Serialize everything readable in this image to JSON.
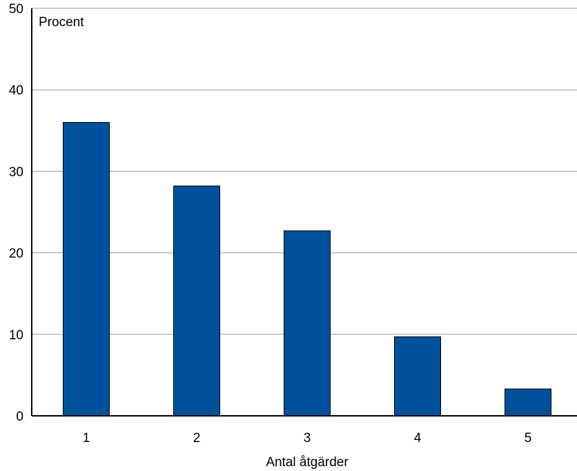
{
  "chart_data": {
    "type": "bar",
    "categories": [
      "1",
      "2",
      "3",
      "4",
      "5"
    ],
    "values": [
      36,
      28.2,
      22.7,
      9.7,
      3.3
    ],
    "ylabel": "Procent",
    "xlabel": "Antal åtgärder",
    "ylim": [
      0,
      50
    ],
    "yticks": [
      0,
      10,
      20,
      30,
      40,
      50
    ],
    "grid": true,
    "legend": "none",
    "bar_color": "#00519c",
    "bar_edge_color": "#000000",
    "grid_color": "#9a9a9a",
    "axis_color": "#000000"
  }
}
